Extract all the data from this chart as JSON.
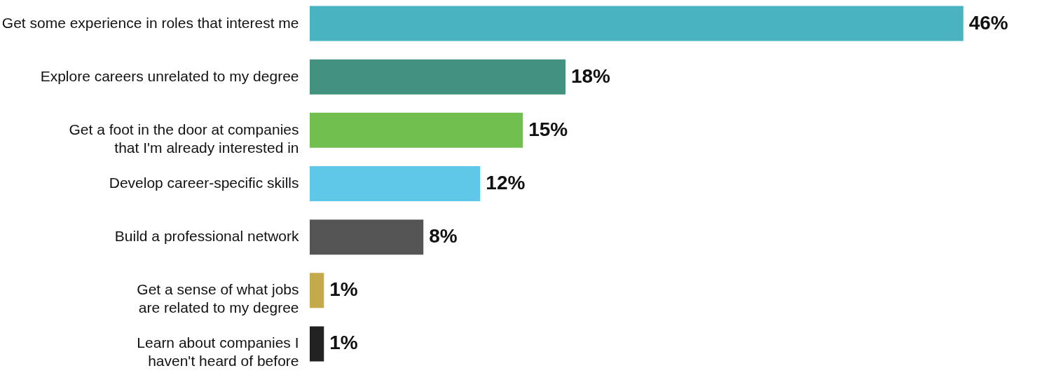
{
  "chart_data": {
    "type": "bar",
    "orientation": "horizontal",
    "categories": [
      "Get some experience in roles that interest me",
      "Explore careers unrelated to my degree",
      "Get a foot in the door at companies that I'm already interested in",
      "Develop career-specific skills",
      "Build a professional network",
      "Get a sense of what jobs are related to my degree",
      "Learn about companies I haven't heard of before"
    ],
    "values": [
      46,
      18,
      15,
      12,
      8,
      1,
      1
    ],
    "colors": [
      "#4ab3c1",
      "#42927f",
      "#71bf4e",
      "#5fc8e8",
      "#555555",
      "#c4aa4a",
      "#222222"
    ],
    "value_labels": [
      "46%",
      "18%",
      "15%",
      "12%",
      "8%",
      "1%",
      "1%"
    ]
  }
}
